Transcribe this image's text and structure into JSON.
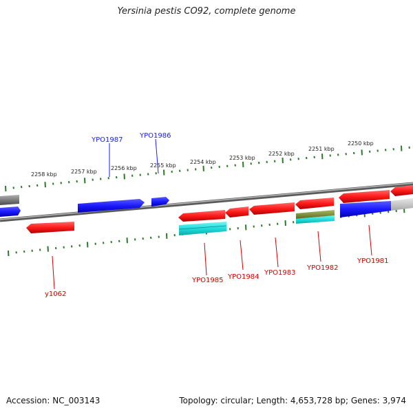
{
  "title": "Yersinia pestis CO92, complete genome",
  "footer": {
    "accession": "Accession: NC_003143",
    "stats": "Topology: circular; Length: 4,653,728 bp; Genes: 3,974"
  },
  "colors": {
    "forward_gene": "#1a1aff",
    "reverse_gene": "#ff1a1a",
    "backbone": "#808080",
    "tick": "#2a7a2a",
    "cyan_feature": "#22dddd",
    "olive_feature": "#7a8a30"
  },
  "kbp_labels": [
    "2258 kbp",
    "2257 kbp",
    "2256 kbp",
    "2255 kbp",
    "2254 kbp",
    "2253 kbp",
    "2252 kbp",
    "2251 kbp",
    "2250 kbp"
  ],
  "gene_labels": {
    "top": [
      "YPO1987",
      "YPO1986"
    ],
    "bottom": [
      "y1062",
      "YPO1985",
      "YPO1984",
      "YPO1983",
      "YPO1982",
      "YPO1981"
    ]
  }
}
